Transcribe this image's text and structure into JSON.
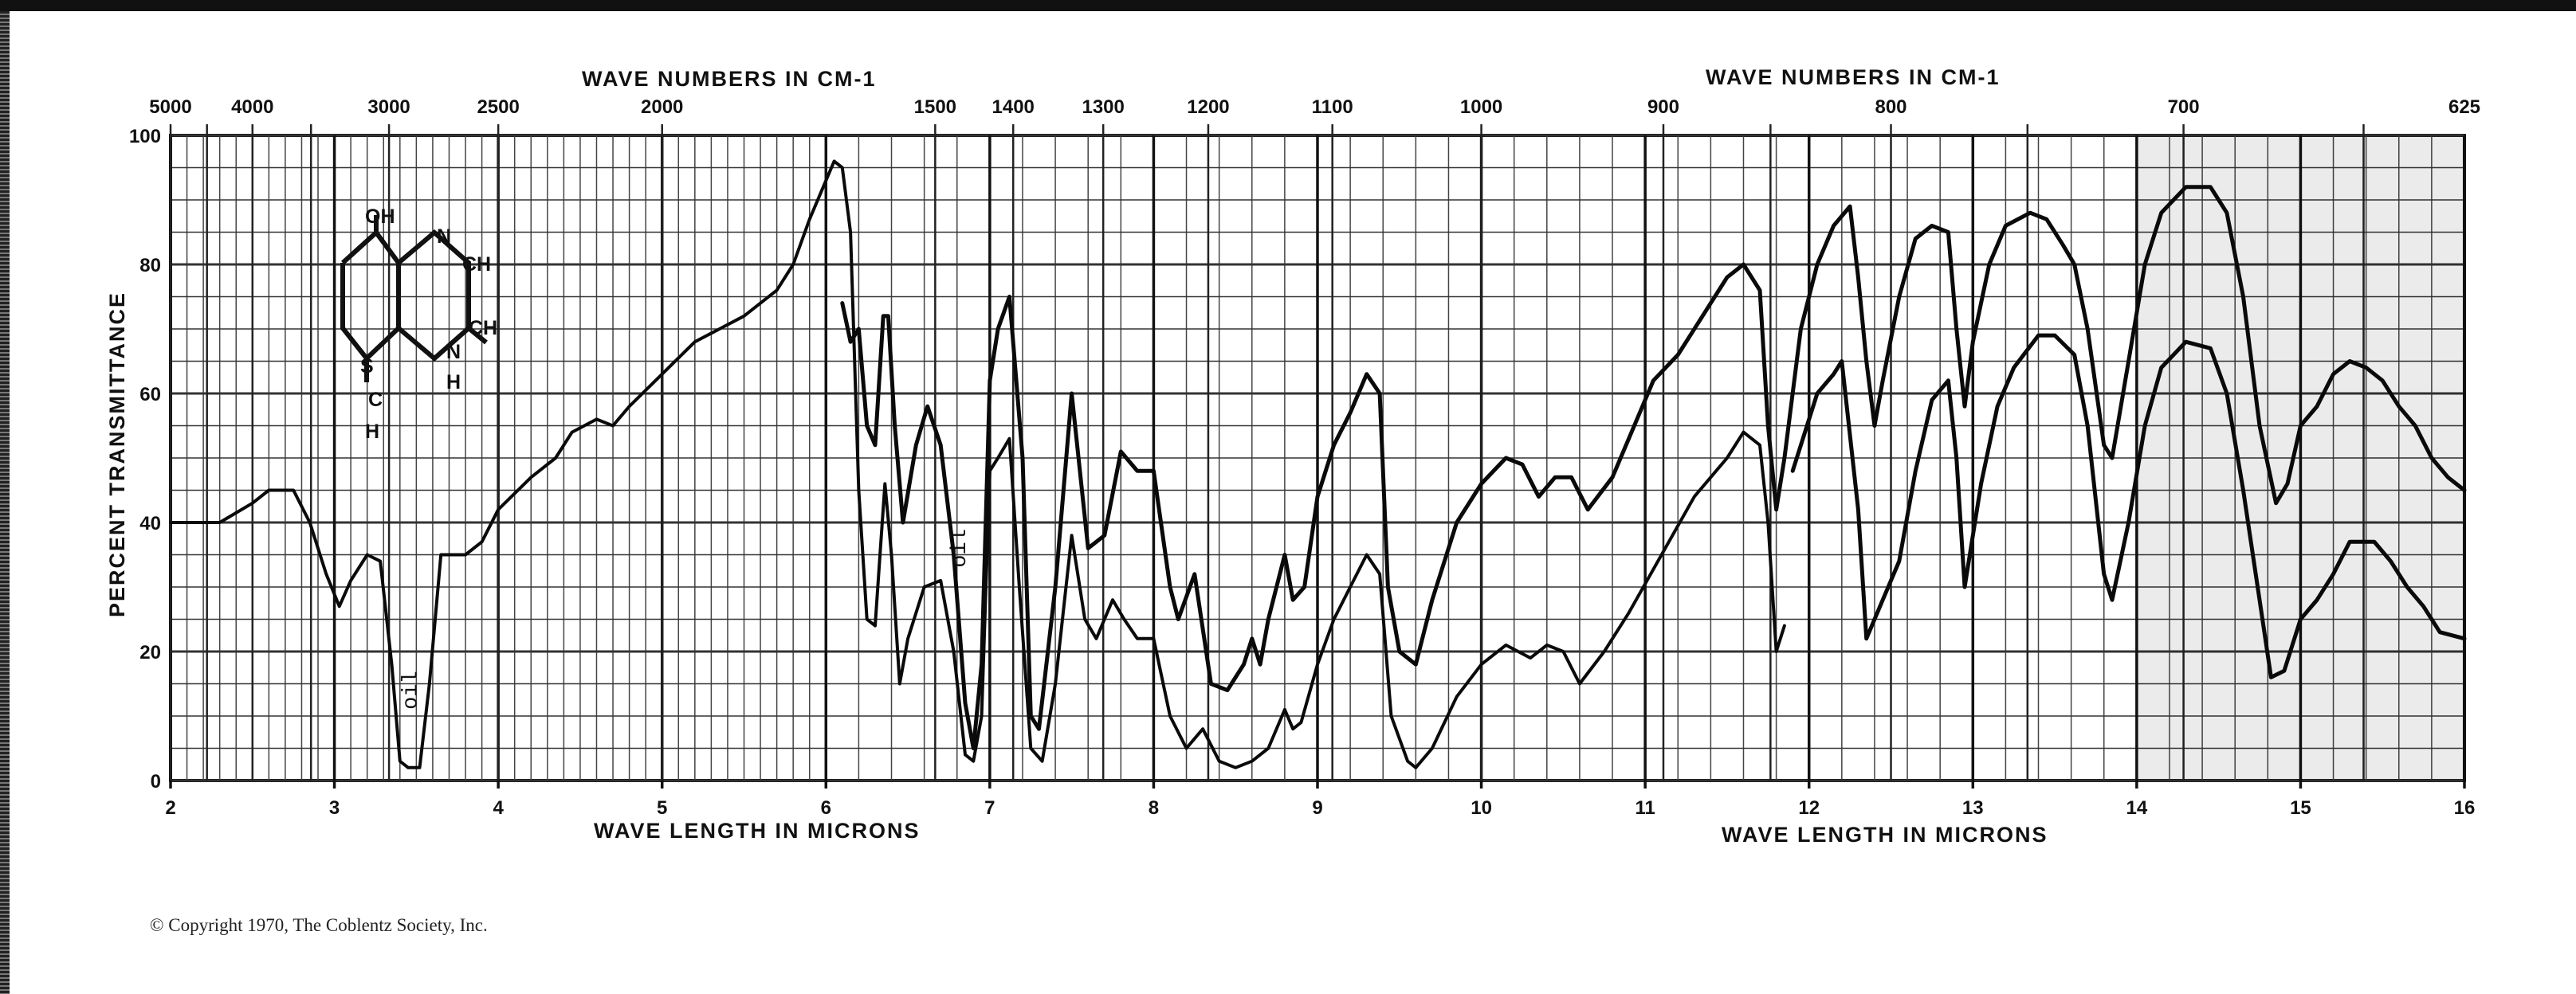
{
  "chart_data": {
    "type": "line",
    "x_axis_bottom": {
      "label": "WAVE LENGTH IN MICRONS",
      "label_right": "WAVE LENGTH IN MICRONS",
      "range": [
        2,
        16
      ],
      "ticks": [
        "2",
        "3",
        "4",
        "5",
        "6",
        "7",
        "8",
        "9",
        "10",
        "11",
        "12",
        "13",
        "14",
        "15",
        "16"
      ]
    },
    "x_axis_top": {
      "label": "WAVE NUMBERS IN CM-1",
      "label_right": "WAVE NUMBERS IN CM-1",
      "ticks": [
        {
          "label": "5000",
          "wavenumber": 5000
        },
        {
          "label": "4000",
          "wavenumber": 4000
        },
        {
          "label": "3000",
          "wavenumber": 3000
        },
        {
          "label": "2500",
          "wavenumber": 2500
        },
        {
          "label": "2000",
          "wavenumber": 2000
        },
        {
          "label": "1500",
          "wavenumber": 1500
        },
        {
          "label": "1400",
          "wavenumber": 1400
        },
        {
          "label": "1300",
          "wavenumber": 1300
        },
        {
          "label": "1200",
          "wavenumber": 1200
        },
        {
          "label": "1100",
          "wavenumber": 1100
        },
        {
          "label": "1000",
          "wavenumber": 1000
        },
        {
          "label": "900",
          "wavenumber": 900
        },
        {
          "label": "800",
          "wavenumber": 800
        },
        {
          "label": "700",
          "wavenumber": 700
        },
        {
          "label": "625",
          "wavenumber": 625
        }
      ]
    },
    "y_axis": {
      "label": "PERCENT TRANSMITTANCE",
      "range": [
        0,
        100
      ],
      "ticks": [
        "0",
        "20",
        "40",
        "60",
        "80",
        "100"
      ]
    },
    "grid": true,
    "annotations": [
      {
        "text": "oil",
        "x": 3.5,
        "y": 14
      },
      {
        "text": "oil",
        "x": 6.85,
        "y": 36
      }
    ],
    "structure_labels": [
      "OH",
      "N",
      "CH",
      "CH",
      "S",
      "C",
      "H",
      "N",
      "H"
    ],
    "series": [
      {
        "values": [
          [
            2.0,
            40
          ],
          [
            2.3,
            40
          ],
          [
            2.5,
            43
          ],
          [
            2.6,
            45
          ],
          [
            2.75,
            45
          ],
          [
            2.85,
            40
          ],
          [
            2.95,
            32
          ],
          [
            3.03,
            27
          ],
          [
            3.1,
            31
          ],
          [
            3.2,
            35
          ],
          [
            3.28,
            34
          ],
          [
            3.35,
            18
          ],
          [
            3.4,
            3
          ],
          [
            3.45,
            2
          ],
          [
            3.52,
            2
          ],
          [
            3.58,
            15
          ],
          [
            3.65,
            35
          ],
          [
            3.8,
            35
          ],
          [
            3.9,
            37
          ],
          [
            4.0,
            42
          ],
          [
            4.2,
            47
          ],
          [
            4.35,
            50
          ],
          [
            4.45,
            54
          ],
          [
            4.6,
            56
          ],
          [
            4.7,
            55
          ],
          [
            4.8,
            58
          ],
          [
            5.0,
            63
          ],
          [
            5.2,
            68
          ],
          [
            5.35,
            70
          ],
          [
            5.5,
            72
          ],
          [
            5.7,
            76
          ],
          [
            5.8,
            80
          ],
          [
            5.9,
            87
          ],
          [
            6.0,
            93
          ],
          [
            6.05,
            96
          ],
          [
            6.1,
            95
          ],
          [
            6.15,
            85
          ],
          [
            6.2,
            45
          ],
          [
            6.25,
            25
          ],
          [
            6.3,
            24
          ],
          [
            6.33,
            35
          ],
          [
            6.36,
            46
          ],
          [
            6.4,
            35
          ],
          [
            6.45,
            15
          ],
          [
            6.5,
            22
          ],
          [
            6.6,
            30
          ],
          [
            6.7,
            31
          ],
          [
            6.78,
            20
          ],
          [
            6.85,
            4
          ],
          [
            6.9,
            3
          ],
          [
            6.95,
            10
          ],
          [
            7.0,
            48
          ],
          [
            7.05,
            50
          ],
          [
            7.12,
            53
          ],
          [
            7.18,
            30
          ],
          [
            7.25,
            5
          ],
          [
            7.32,
            3
          ],
          [
            7.4,
            15
          ],
          [
            7.5,
            38
          ],
          [
            7.58,
            25
          ],
          [
            7.65,
            22
          ],
          [
            7.75,
            28
          ],
          [
            7.82,
            25
          ],
          [
            7.9,
            22
          ],
          [
            8.0,
            22
          ],
          [
            8.1,
            10
          ],
          [
            8.2,
            5
          ],
          [
            8.3,
            8
          ],
          [
            8.4,
            3
          ],
          [
            8.5,
            2
          ],
          [
            8.6,
            3
          ],
          [
            8.7,
            5
          ],
          [
            8.8,
            11
          ],
          [
            8.85,
            8
          ],
          [
            8.9,
            9
          ],
          [
            9.0,
            18
          ],
          [
            9.1,
            25
          ],
          [
            9.2,
            30
          ],
          [
            9.3,
            35
          ],
          [
            9.38,
            32
          ],
          [
            9.45,
            10
          ],
          [
            9.55,
            3
          ],
          [
            9.6,
            2
          ],
          [
            9.7,
            5
          ],
          [
            9.85,
            13
          ],
          [
            10.0,
            18
          ],
          [
            10.15,
            21
          ],
          [
            10.3,
            19
          ],
          [
            10.4,
            21
          ],
          [
            10.5,
            20
          ],
          [
            10.6,
            15
          ],
          [
            10.75,
            20
          ],
          [
            10.9,
            26
          ],
          [
            11.1,
            35
          ],
          [
            11.3,
            44
          ],
          [
            11.5,
            50
          ],
          [
            11.6,
            54
          ],
          [
            11.7,
            52
          ],
          [
            11.75,
            40
          ],
          [
            11.8,
            20
          ],
          [
            11.85,
            24
          ]
        ]
      },
      {
        "values": [
          [
            6.1,
            74
          ],
          [
            6.15,
            68
          ],
          [
            6.2,
            70
          ],
          [
            6.25,
            55
          ],
          [
            6.3,
            52
          ],
          [
            6.35,
            72
          ],
          [
            6.38,
            72
          ],
          [
            6.42,
            55
          ],
          [
            6.47,
            40
          ],
          [
            6.55,
            52
          ],
          [
            6.62,
            58
          ],
          [
            6.7,
            52
          ],
          [
            6.78,
            35
          ],
          [
            6.85,
            12
          ],
          [
            6.9,
            5
          ],
          [
            6.95,
            18
          ],
          [
            7.0,
            62
          ],
          [
            7.05,
            70
          ],
          [
            7.12,
            75
          ],
          [
            7.2,
            50
          ],
          [
            7.25,
            10
          ],
          [
            7.3,
            8
          ],
          [
            7.4,
            30
          ],
          [
            7.5,
            60
          ],
          [
            7.6,
            36
          ],
          [
            7.7,
            38
          ],
          [
            7.8,
            51
          ],
          [
            7.9,
            48
          ],
          [
            8.0,
            48
          ],
          [
            8.1,
            30
          ],
          [
            8.15,
            25
          ],
          [
            8.25,
            32
          ],
          [
            8.35,
            15
          ],
          [
            8.45,
            14
          ],
          [
            8.55,
            18
          ],
          [
            8.6,
            22
          ],
          [
            8.65,
            18
          ],
          [
            8.7,
            25
          ],
          [
            8.8,
            35
          ],
          [
            8.85,
            28
          ],
          [
            8.92,
            30
          ],
          [
            9.0,
            44
          ],
          [
            9.1,
            52
          ],
          [
            9.2,
            57
          ],
          [
            9.3,
            63
          ],
          [
            9.38,
            60
          ],
          [
            9.43,
            30
          ],
          [
            9.5,
            20
          ],
          [
            9.6,
            18
          ],
          [
            9.7,
            28
          ],
          [
            9.85,
            40
          ],
          [
            10.0,
            46
          ],
          [
            10.15,
            50
          ],
          [
            10.25,
            49
          ],
          [
            10.35,
            44
          ],
          [
            10.45,
            47
          ],
          [
            10.55,
            47
          ],
          [
            10.65,
            42
          ],
          [
            10.8,
            47
          ],
          [
            10.9,
            53
          ],
          [
            11.05,
            62
          ],
          [
            11.2,
            66
          ],
          [
            11.35,
            72
          ],
          [
            11.5,
            78
          ],
          [
            11.6,
            80
          ],
          [
            11.7,
            76
          ],
          [
            11.75,
            55
          ],
          [
            11.8,
            42
          ],
          [
            11.85,
            50
          ],
          [
            11.95,
            70
          ],
          [
            12.05,
            80
          ],
          [
            12.15,
            86
          ],
          [
            12.25,
            89
          ],
          [
            12.3,
            78
          ],
          [
            12.35,
            65
          ],
          [
            12.4,
            55
          ],
          [
            12.45,
            62
          ],
          [
            12.55,
            75
          ],
          [
            12.65,
            84
          ],
          [
            12.75,
            86
          ],
          [
            12.85,
            85
          ],
          [
            12.9,
            70
          ],
          [
            12.95,
            58
          ],
          [
            13.0,
            68
          ],
          [
            13.1,
            80
          ],
          [
            13.2,
            86
          ],
          [
            13.35,
            88
          ],
          [
            13.45,
            87
          ],
          [
            13.55,
            83
          ],
          [
            13.62,
            80
          ],
          [
            13.7,
            70
          ],
          [
            13.8,
            52
          ],
          [
            13.85,
            50
          ],
          [
            13.95,
            65
          ],
          [
            14.05,
            80
          ],
          [
            14.15,
            88
          ],
          [
            14.3,
            92
          ],
          [
            14.45,
            92
          ],
          [
            14.55,
            88
          ],
          [
            14.65,
            75
          ],
          [
            14.75,
            55
          ],
          [
            14.85,
            43
          ],
          [
            14.92,
            46
          ],
          [
            15.0,
            55
          ],
          [
            15.1,
            58
          ],
          [
            15.2,
            63
          ],
          [
            15.3,
            65
          ],
          [
            15.4,
            64
          ],
          [
            15.5,
            62
          ],
          [
            15.6,
            58
          ],
          [
            15.7,
            55
          ],
          [
            15.8,
            50
          ],
          [
            15.9,
            47
          ],
          [
            16.0,
            45
          ]
        ]
      },
      {
        "values": [
          [
            11.9,
            48
          ],
          [
            12.05,
            60
          ],
          [
            12.15,
            63
          ],
          [
            12.2,
            65
          ],
          [
            12.3,
            42
          ],
          [
            12.35,
            22
          ],
          [
            12.45,
            28
          ],
          [
            12.55,
            34
          ],
          [
            12.65,
            48
          ],
          [
            12.75,
            59
          ],
          [
            12.85,
            62
          ],
          [
            12.9,
            50
          ],
          [
            12.95,
            30
          ],
          [
            13.05,
            46
          ],
          [
            13.15,
            58
          ],
          [
            13.25,
            64
          ],
          [
            13.4,
            69
          ],
          [
            13.5,
            69
          ],
          [
            13.62,
            66
          ],
          [
            13.7,
            55
          ],
          [
            13.8,
            32
          ],
          [
            13.85,
            28
          ],
          [
            13.95,
            40
          ],
          [
            14.05,
            55
          ],
          [
            14.15,
            64
          ],
          [
            14.3,
            68
          ],
          [
            14.45,
            67
          ],
          [
            14.55,
            60
          ],
          [
            14.65,
            45
          ],
          [
            14.75,
            28
          ],
          [
            14.82,
            16
          ],
          [
            14.9,
            17
          ],
          [
            15.0,
            25
          ],
          [
            15.1,
            28
          ],
          [
            15.2,
            32
          ],
          [
            15.3,
            37
          ],
          [
            15.45,
            37
          ],
          [
            15.55,
            34
          ],
          [
            15.65,
            30
          ],
          [
            15.75,
            27
          ],
          [
            15.85,
            23
          ],
          [
            16.0,
            22
          ]
        ]
      }
    ]
  },
  "footer": {
    "copyright": "© Copyright 1970, The Coblentz Society, Inc."
  }
}
